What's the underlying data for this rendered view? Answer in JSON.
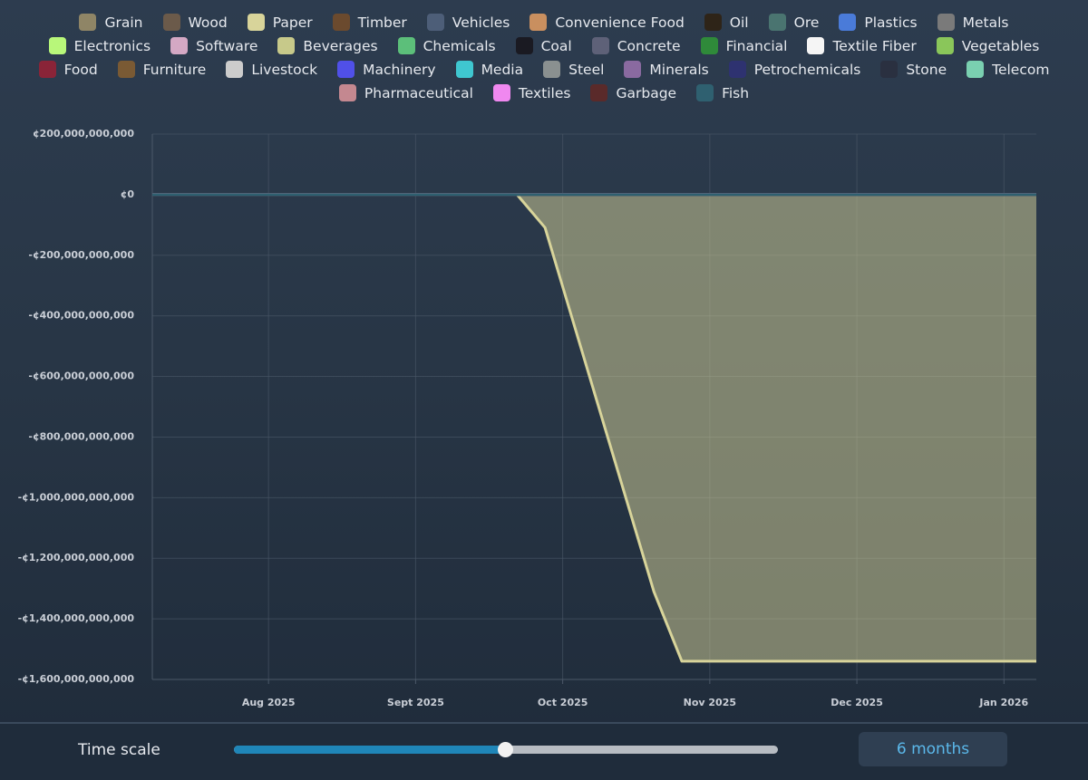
{
  "chart_data": {
    "type": "area",
    "x": [
      7.21,
      9.69,
      9.88,
      10.62,
      10.81,
      13.22
    ],
    "xlim": [
      7.21,
      13.22
    ],
    "xticks": [
      {
        "value": 8,
        "label": "Aug 2025"
      },
      {
        "value": 9,
        "label": "Sept 2025"
      },
      {
        "value": 10,
        "label": "Oct 2025"
      },
      {
        "value": 11,
        "label": "Nov 2025"
      },
      {
        "value": 12,
        "label": "Dec 2025"
      },
      {
        "value": 13,
        "label": "Jan 2026"
      }
    ],
    "ylim": [
      -1600000000000,
      200000000000
    ],
    "yticks": [
      {
        "value": 200000000000,
        "label": "¢200,000,000,000"
      },
      {
        "value": 0,
        "label": "¢0"
      },
      {
        "value": -200000000000,
        "label": "-¢200,000,000,000"
      },
      {
        "value": -400000000000,
        "label": "-¢400,000,000,000"
      },
      {
        "value": -600000000000,
        "label": "-¢600,000,000,000"
      },
      {
        "value": -800000000000,
        "label": "-¢800,000,000,000"
      },
      {
        "value": -1000000000000,
        "label": "-¢1,000,000,000,000"
      },
      {
        "value": -1200000000000,
        "label": "-¢1,200,000,000,000"
      },
      {
        "value": -1400000000000,
        "label": "-¢1,400,000,000,000"
      },
      {
        "value": -1600000000000,
        "label": "-¢1,600,000,000,000"
      }
    ],
    "grid": true,
    "series": [
      {
        "name": "Grain",
        "color": "#8f8566",
        "values": [
          0,
          0,
          0,
          0,
          0,
          0
        ]
      },
      {
        "name": "Wood",
        "color": "#6b5a4a",
        "values": [
          0,
          0,
          0,
          0,
          0,
          0
        ]
      },
      {
        "name": "Paper",
        "color": "#d8d49a",
        "values": [
          0,
          0,
          -109000000000,
          -1310000000000,
          -1540000000000,
          -1540000000000
        ]
      },
      {
        "name": "Timber",
        "color": "#6b4a2e",
        "values": [
          0,
          0,
          0,
          0,
          0,
          0
        ]
      },
      {
        "name": "Vehicles",
        "color": "#4d5e78",
        "values": [
          0,
          0,
          0,
          0,
          0,
          0
        ]
      },
      {
        "name": "Convenience Food",
        "color": "#c98f5f",
        "values": [
          0,
          0,
          0,
          0,
          0,
          0
        ]
      },
      {
        "name": "Oil",
        "color": "#2e2418",
        "values": [
          0,
          0,
          0,
          0,
          0,
          0
        ]
      },
      {
        "name": "Ore",
        "color": "#4a7470",
        "values": [
          0,
          0,
          0,
          0,
          0,
          0
        ]
      },
      {
        "name": "Plastics",
        "color": "#4a7bd9",
        "values": [
          0,
          0,
          0,
          0,
          0,
          0
        ]
      },
      {
        "name": "Metals",
        "color": "#7a7a7a",
        "values": [
          0,
          0,
          0,
          0,
          0,
          0
        ]
      },
      {
        "name": "Electronics",
        "color": "#b8f77a",
        "values": [
          0,
          0,
          0,
          0,
          0,
          0
        ]
      },
      {
        "name": "Software",
        "color": "#d4a8c4",
        "values": [
          0,
          0,
          0,
          0,
          0,
          0
        ]
      },
      {
        "name": "Beverages",
        "color": "#c7c98a",
        "values": [
          0,
          0,
          0,
          0,
          0,
          0
        ]
      },
      {
        "name": "Chemicals",
        "color": "#5cbf7a",
        "values": [
          0,
          0,
          0,
          0,
          0,
          0
        ]
      },
      {
        "name": "Coal",
        "color": "#1a1a22",
        "values": [
          0,
          0,
          0,
          0,
          0,
          0
        ]
      },
      {
        "name": "Concrete",
        "color": "#5e6178",
        "values": [
          0,
          0,
          0,
          0,
          0,
          0
        ]
      },
      {
        "name": "Financial",
        "color": "#2f8a3a",
        "values": [
          0,
          0,
          0,
          0,
          0,
          0
        ]
      },
      {
        "name": "Textile Fiber",
        "color": "#f5f5f5",
        "values": [
          0,
          0,
          0,
          0,
          0,
          0
        ]
      },
      {
        "name": "Vegetables",
        "color": "#8ac65a",
        "values": [
          0,
          0,
          0,
          0,
          0,
          0
        ]
      },
      {
        "name": "Food",
        "color": "#8a2438",
        "values": [
          0,
          0,
          0,
          0,
          0,
          0
        ]
      },
      {
        "name": "Furniture",
        "color": "#7a5a34",
        "values": [
          0,
          0,
          0,
          0,
          0,
          0
        ]
      },
      {
        "name": "Livestock",
        "color": "#cccccc",
        "values": [
          0,
          0,
          0,
          0,
          0,
          0
        ]
      },
      {
        "name": "Machinery",
        "color": "#5050e8",
        "values": [
          0,
          0,
          0,
          0,
          0,
          0
        ]
      },
      {
        "name": "Media",
        "color": "#3fc7d0",
        "values": [
          0,
          0,
          0,
          0,
          0,
          0
        ]
      },
      {
        "name": "Steel",
        "color": "#8a9090",
        "values": [
          0,
          0,
          0,
          0,
          0,
          0
        ]
      },
      {
        "name": "Minerals",
        "color": "#8a6aa0",
        "values": [
          0,
          0,
          0,
          0,
          0,
          0
        ]
      },
      {
        "name": "Petrochemicals",
        "color": "#2e3270",
        "values": [
          0,
          0,
          0,
          0,
          0,
          0
        ]
      },
      {
        "name": "Stone",
        "color": "#2a3040",
        "values": [
          0,
          0,
          0,
          0,
          0,
          0
        ]
      },
      {
        "name": "Telecom",
        "color": "#7ad0b0",
        "values": [
          0,
          0,
          0,
          0,
          0,
          0
        ]
      },
      {
        "name": "Pharmaceutical",
        "color": "#c48890",
        "values": [
          0,
          0,
          0,
          0,
          0,
          0
        ]
      },
      {
        "name": "Textiles",
        "color": "#f088f0",
        "values": [
          0,
          0,
          0,
          0,
          0,
          0
        ]
      },
      {
        "name": "Garbage",
        "color": "#5a2a2a",
        "values": [
          0,
          0,
          0,
          0,
          0,
          0
        ]
      },
      {
        "name": "Fish",
        "color": "#2f6070",
        "values": [
          0,
          0,
          0,
          0,
          0,
          0
        ]
      }
    ]
  },
  "controls": {
    "time_scale_label": "Time scale",
    "time_scale_value": "6 months"
  }
}
